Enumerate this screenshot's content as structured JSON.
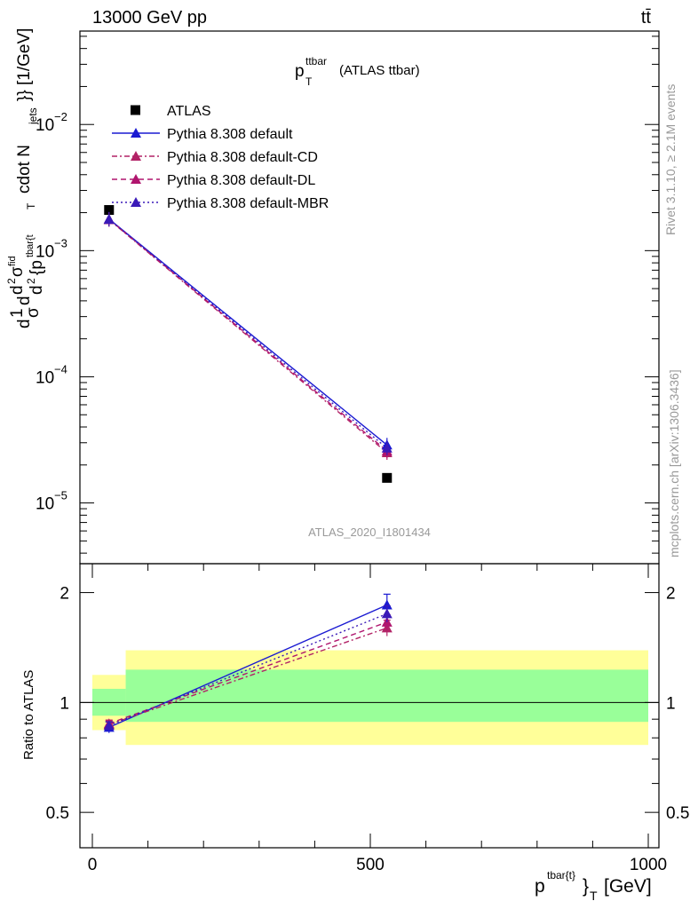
{
  "header": {
    "left": "13000 GeV pp",
    "right": "tt̄"
  },
  "plot_title": {
    "base": "p",
    "sup": "ttbar",
    "sub": "T",
    "suffix": "(ATLAS ttbar)"
  },
  "watermark": "ATLAS_2020_I1801434",
  "side_text": {
    "rivet": "Rivet 3.1.10, ≥ 2.1M events",
    "mcplots": "mcplots.cern.ch [arXiv:1306.3436]"
  },
  "y_label_main": {
    "p1": "d",
    "p2": "1",
    "p3": "σ",
    "p4": "d",
    "p5": "d",
    "p6": "2",
    "p7": "σ",
    "p8": "fid",
    "p9": "d",
    "p10": "2",
    "p11": "{p",
    "p12": "tbar{t",
    "p13": "T",
    "p14": "cdot N",
    "p15": "jets",
    "p16": "}} [1/GeV]"
  },
  "y_label_ratio": "Ratio to ATLAS",
  "x_label": {
    "base": "p",
    "sup": "tbar{t}",
    "brace": "}",
    "sub": "T",
    "unit": "[GeV]"
  },
  "chart_data": [
    {
      "type": "line",
      "panel": "main",
      "yscale": "log",
      "xlim": [
        -20,
        1020
      ],
      "ylim": [
        3.3e-06,
        0.055
      ],
      "y_ticks": [
        {
          "value": 1e-05,
          "mant": "10",
          "exp": "−5"
        },
        {
          "value": 0.0001,
          "mant": "10",
          "exp": "−4"
        },
        {
          "value": 0.001,
          "mant": "10",
          "exp": "−3"
        },
        {
          "value": 0.01,
          "mant": "10",
          "exp": "−2"
        }
      ],
      "legend_position": "top-left",
      "series": [
        {
          "name": "ATLAS",
          "marker": "square",
          "color": "#000000",
          "line": "none",
          "x": [
            30,
            530
          ],
          "y": [
            0.0021,
            1.58e-05
          ]
        },
        {
          "name": "Pythia 8.308 default",
          "marker": "triangle",
          "color": "#1a1ad2",
          "line": "solid",
          "x": [
            30,
            530
          ],
          "y": [
            0.00178,
            2.88e-05
          ]
        },
        {
          "name": "Pythia 8.308 default-CD",
          "marker": "triangle",
          "color": "#b22266",
          "line": "dashdot",
          "x": [
            30,
            530
          ],
          "y": [
            0.00176,
            2.5e-05
          ]
        },
        {
          "name": "Pythia 8.308 default-DL",
          "marker": "triangle",
          "color": "#b0156e",
          "line": "dashed",
          "x": [
            30,
            530
          ],
          "y": [
            0.00177,
            2.58e-05
          ]
        },
        {
          "name": "Pythia 8.308 default-MBR",
          "marker": "triangle",
          "color": "#3a1ab8",
          "line": "dotted",
          "x": [
            30,
            530
          ],
          "y": [
            0.00177,
            2.72e-05
          ]
        }
      ]
    },
    {
      "type": "line",
      "panel": "ratio",
      "yscale": "log",
      "xlim": [
        -20,
        1020
      ],
      "ylim": [
        0.4,
        2.4
      ],
      "y_ticks": [
        {
          "value": 0.5,
          "label": "0.5"
        },
        {
          "value": 1,
          "label": "1"
        },
        {
          "value": 2,
          "label": "2"
        }
      ],
      "x_ticks": [
        {
          "value": 0,
          "label": "0"
        },
        {
          "value": 500,
          "label": "500"
        },
        {
          "value": 1000,
          "label": "1000"
        }
      ],
      "bands": [
        {
          "x0": 0,
          "x1": 60,
          "yellow": [
            0.84,
            1.19
          ],
          "green": [
            0.92,
            1.09
          ]
        },
        {
          "x0": 60,
          "x1": 1000,
          "yellow": [
            0.765,
            1.39
          ],
          "green": [
            0.885,
            1.23
          ]
        }
      ],
      "series": [
        {
          "name": "Pythia 8.308 default",
          "color": "#1a1ad2",
          "line": "solid",
          "x": [
            30,
            530
          ],
          "y": [
            0.855,
            1.85
          ],
          "err": [
            0.03,
            0.13
          ]
        },
        {
          "name": "Pythia 8.308 default-CD",
          "color": "#b22266",
          "line": "dashdot",
          "x": [
            30,
            530
          ],
          "y": [
            0.87,
            1.6
          ],
          "err": [
            0.02,
            0.08
          ]
        },
        {
          "name": "Pythia 8.308 default-DL",
          "color": "#b0156e",
          "line": "dashed",
          "x": [
            30,
            530
          ],
          "y": [
            0.875,
            1.66
          ],
          "err": [
            0.02,
            0.08
          ]
        },
        {
          "name": "Pythia 8.308 default-MBR",
          "color": "#3a1ab8",
          "line": "dotted",
          "x": [
            30,
            530
          ],
          "y": [
            0.865,
            1.75
          ],
          "err": [
            0.02,
            0.09
          ]
        }
      ]
    }
  ]
}
